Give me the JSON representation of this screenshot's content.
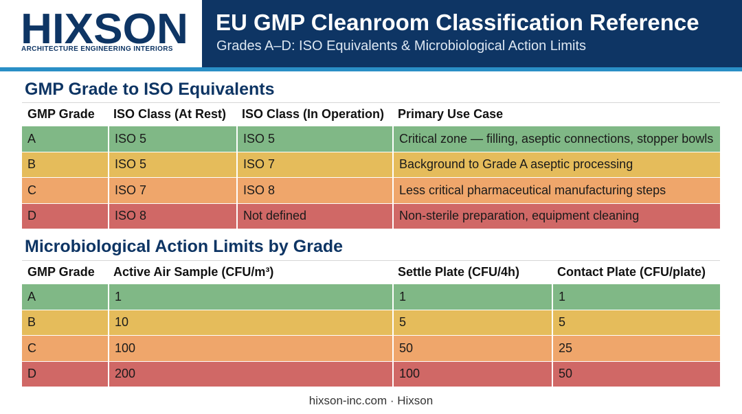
{
  "header": {
    "logo_text": "HIXSON",
    "logo_tagline": "ARCHITECTURE ENGINEERING INTERIORS",
    "title": "EU GMP Cleanroom Classification Reference",
    "subtitle": "Grades A–D: ISO Equivalents & Microbiological Action Limits"
  },
  "iso_table": {
    "heading": "GMP Grade to ISO Equivalents",
    "columns": [
      "GMP Grade",
      "ISO Class (At Rest)",
      "ISO Class (In Operation)",
      "Primary Use Case"
    ],
    "rows": [
      [
        "A",
        "ISO 5",
        "ISO 5",
        "Critical zone — filling, aseptic connections, stopper bowls"
      ],
      [
        "B",
        "ISO 5",
        "ISO 7",
        "Background to Grade A aseptic processing"
      ],
      [
        "C",
        "ISO 7",
        "ISO 8",
        "Less critical pharmaceutical manufacturing steps"
      ],
      [
        "D",
        "ISO 8",
        "Not defined",
        "Non-sterile preparation, equipment cleaning"
      ]
    ]
  },
  "micro_table": {
    "heading": "Microbiological Action Limits by Grade",
    "columns": [
      "GMP Grade",
      "Active Air Sample (CFU/m³)",
      "Settle Plate (CFU/4h)",
      "Contact Plate (CFU/plate)"
    ],
    "rows": [
      [
        "A",
        "1",
        "1",
        "1"
      ],
      [
        "B",
        "10",
        "5",
        "5"
      ],
      [
        "C",
        "100",
        "50",
        "25"
      ],
      [
        "D",
        "200",
        "100",
        "50"
      ]
    ]
  },
  "colors": {
    "navy": "#0e3564",
    "accent_blue": "#2a8fc6",
    "grade_a": "#80b886",
    "grade_b": "#e5bc5b",
    "grade_c": "#efa66b",
    "grade_d": "#d06866"
  },
  "footer": {
    "text": "hixson-inc.com · Hixson"
  }
}
